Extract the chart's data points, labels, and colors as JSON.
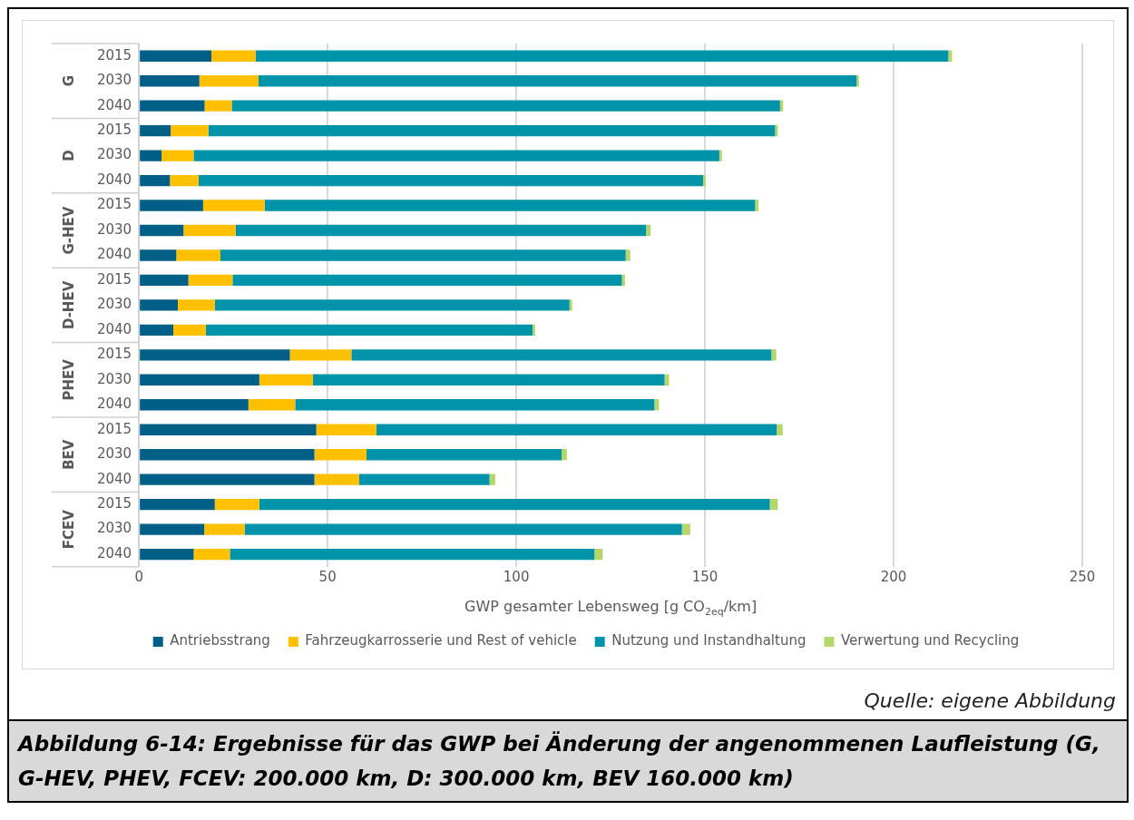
{
  "chart_data": {
    "type": "bar",
    "orientation": "horizontal",
    "stacked": true,
    "title": "Abbildung 6-14: Ergebnisse für das GWP bei Änderung der angenommenen Laufleistung (G, G-HEV, PHEV, FCEV: 200.000 km, D: 300.000 km, BEV 160.000 km)",
    "xlabel": "GWP gesamter Lebensweg [g CO$_{2eq}$/km]",
    "categories": [
      "2015",
      "2030",
      "2040",
      "2015",
      "2030",
      "2040",
      "2015",
      "2030",
      "2040",
      "2015",
      "2030",
      "2040",
      "2015",
      "2030",
      "2040",
      "2015",
      "2030",
      "2040",
      "2015",
      "2030",
      "2040"
    ],
    "series": [
      {
        "name": "Antriebsstrang",
        "color": "#005f87",
        "values": [
          19.2,
          16.0,
          17.4,
          8.4,
          6.0,
          8.2,
          17.0,
          11.8,
          9.9,
          13.1,
          10.3,
          9.1,
          40.0,
          31.9,
          29.0,
          47.0,
          46.5,
          46.5,
          20.1,
          17.3,
          14.5
        ]
      },
      {
        "name": "Fahrzeugkarrosserie und Rest of vehicle",
        "color": "#ffc000",
        "values": [
          11.7,
          15.7,
          7.2,
          10.0,
          8.5,
          7.6,
          16.3,
          13.8,
          11.7,
          11.7,
          9.8,
          8.6,
          16.3,
          14.2,
          12.4,
          15.9,
          13.8,
          11.8,
          11.8,
          10.7,
          9.6
        ]
      },
      {
        "name": "Nutzung und Instandhaltung",
        "color": "#0093a9",
        "values": [
          183.6,
          158.5,
          145.3,
          150.2,
          139.3,
          133.7,
          130.0,
          108.8,
          107.4,
          103.2,
          94.0,
          86.6,
          111.3,
          93.2,
          95.2,
          106.1,
          51.7,
          34.6,
          135.3,
          115.9,
          96.6
        ]
      },
      {
        "name": "Verwertung und Recycling",
        "color": "#b5d66b",
        "values": [
          1.0,
          0.6,
          0.8,
          0.7,
          0.7,
          0.7,
          0.9,
          1.2,
          1.2,
          0.8,
          0.7,
          0.7,
          1.3,
          1.2,
          1.2,
          1.6,
          1.4,
          1.5,
          2.1,
          2.2,
          2.2
        ]
      }
    ],
    "xlim": [
      0,
      250
    ],
    "xticks": [
      0,
      50,
      100,
      150,
      200,
      250
    ],
    "grid": "x",
    "legend": "bottom",
    "annotations": [
      "G",
      "D",
      "G-HEV",
      "D-HEV",
      "PHEV",
      "BEV",
      "FCEV",
      "Quelle: eigene Abbildung"
    ]
  }
}
